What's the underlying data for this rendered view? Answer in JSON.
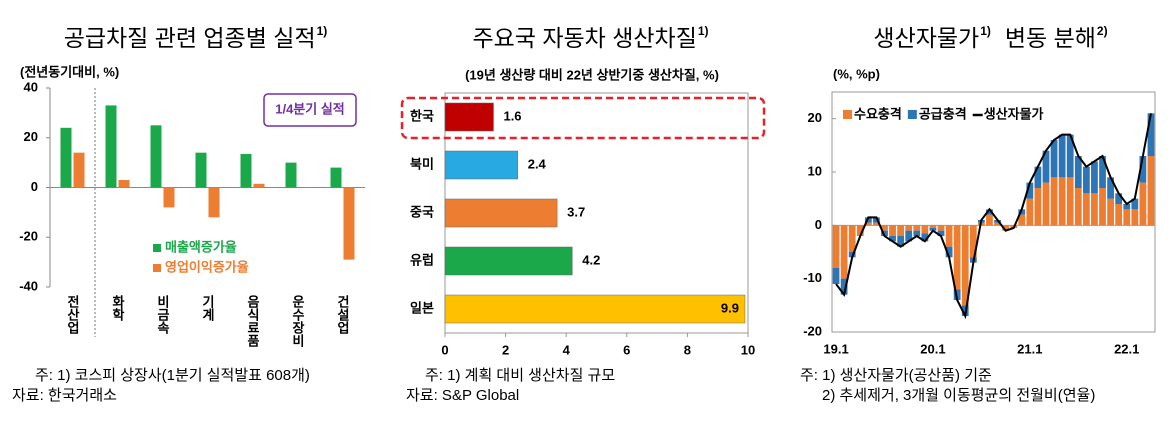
{
  "chart_data": [
    {
      "type": "bar",
      "title": "공급차질 관련 업종별 실적",
      "title_note": "1)",
      "ylabel": "(전년동기대비, %)",
      "categories": [
        "전산업",
        "화학",
        "비금속",
        "기계",
        "음식료품",
        "운수장비",
        "건설업"
      ],
      "series": [
        {
          "name": "매출액증가율",
          "color": "#1aa84a",
          "values": [
            24,
            33,
            25,
            14,
            13.5,
            10,
            8
          ]
        },
        {
          "name": "영업이익증가율",
          "color": "#ed7d31",
          "values": [
            14,
            3,
            -8,
            -12,
            1.5,
            0,
            -29
          ]
        }
      ],
      "ylim": [
        -40,
        40
      ],
      "yticks": [
        -40,
        -20,
        0,
        20,
        40
      ],
      "grid": false,
      "annotation": "1/4분기 실적",
      "notes": [
        "주: 1) 코스피 상장사(1분기 실적발표 608개)",
        "자료: 한국거래소"
      ]
    },
    {
      "type": "barh",
      "title": "주요국 자동차 생산차질",
      "title_note": "1)",
      "subtitle": "(19년 생산량 대비 22년 상반기중 생산차질, %)",
      "categories": [
        "한국",
        "북미",
        "중국",
        "유럽",
        "일본"
      ],
      "values": [
        1.6,
        2.4,
        3.7,
        4.2,
        9.9
      ],
      "colors": [
        "#c00000",
        "#29a9e1",
        "#ed7d31",
        "#1aa84a",
        "#ffc000"
      ],
      "xlim": [
        0,
        10
      ],
      "xticks": [
        0,
        2,
        4,
        6,
        8,
        10
      ],
      "grid": false,
      "notes": [
        "주: 1) 계획 대비 생산차질 규모",
        "자료: S&P Global"
      ]
    },
    {
      "type": "stacked_bar",
      "title": "생산자물가",
      "title_note": "1)",
      "title_cont": "변동 분해",
      "title_cont_note": "2)",
      "ylabel": "(%, %p)",
      "categories": [
        "19.1",
        null,
        null,
        null,
        null,
        null,
        null,
        null,
        null,
        null,
        null,
        null,
        "20.1",
        null,
        null,
        null,
        null,
        null,
        null,
        null,
        null,
        null,
        null,
        null,
        "21.1",
        null,
        null,
        null,
        null,
        null,
        null,
        null,
        null,
        null,
        null,
        null,
        "22.1",
        null,
        null,
        null
      ],
      "series": [
        {
          "name": "수요충격",
          "color": "#ed7d31",
          "values": [
            -8,
            -10,
            -5,
            -2,
            0.5,
            0.5,
            -1,
            -2,
            -2,
            -1,
            -1,
            -1.5,
            -0.5,
            -1,
            -4,
            -12,
            -15,
            -6,
            0.5,
            2,
            0.5,
            -1,
            -0.5,
            2,
            5,
            7,
            8,
            9,
            9,
            9,
            7,
            6,
            6,
            7,
            5,
            4,
            3,
            3,
            8,
            13
          ]
        },
        {
          "name": "공급충격",
          "color": "#2e75b6",
          "values": [
            -3,
            -3,
            -1,
            0,
            1,
            1,
            -1,
            -1,
            -2,
            -2,
            -1,
            -1.5,
            -0.5,
            -1,
            -2,
            -2,
            -2,
            -1,
            0.5,
            1,
            0.5,
            0,
            0,
            1,
            3,
            4,
            6,
            7,
            8,
            8,
            6,
            5,
            6,
            6,
            4,
            2,
            1,
            2,
            5,
            8
          ]
        },
        {
          "name": "생산자물가",
          "color": "#000000",
          "type": "line",
          "values": [
            -11,
            -13,
            -6,
            -2,
            1.5,
            1.5,
            -2,
            -3,
            -4,
            -3,
            -2,
            -3,
            -1,
            -2,
            -6,
            -14,
            -17,
            -7,
            1,
            3,
            1,
            -1,
            -0.5,
            3,
            8,
            11,
            14,
            16,
            17,
            17,
            13,
            11,
            12,
            13,
            9,
            6,
            4,
            5,
            13,
            21
          ]
        }
      ],
      "ylim": [
        -20,
        25
      ],
      "yticks": [
        -20,
        -10,
        0,
        10,
        20
      ],
      "grid": false,
      "notes": [
        "주: 1) 생산자물가(공산품) 기준",
        "2) 추세제거, 3개월 이동평균의 전월비(연율)"
      ]
    }
  ]
}
